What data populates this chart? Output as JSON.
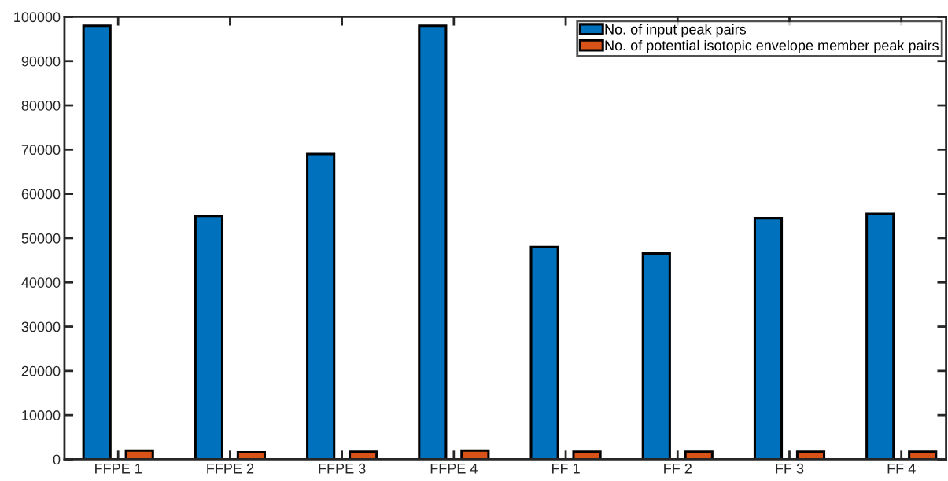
{
  "chart_data": {
    "type": "bar",
    "categories": [
      "FFPE 1",
      "FFPE 2",
      "FFPE 3",
      "FFPE 4",
      "FF 1",
      "FF 2",
      "FF 3",
      "FF 4"
    ],
    "series": [
      {
        "name": "No. of input peak pairs",
        "color": "#0072bd",
        "values": [
          98000,
          55000,
          69000,
          98000,
          48000,
          46500,
          54500,
          55500
        ]
      },
      {
        "name": "No. of potential isotopic envelope member peak pairs",
        "color": "#d95319",
        "values": [
          2000,
          1600,
          1700,
          2000,
          1700,
          1700,
          1700,
          1700
        ]
      }
    ],
    "ylim": [
      0,
      100000
    ],
    "yticks": [
      0,
      10000,
      20000,
      30000,
      40000,
      50000,
      60000,
      70000,
      80000,
      90000,
      100000
    ],
    "grid": false,
    "legend": "top right"
  }
}
